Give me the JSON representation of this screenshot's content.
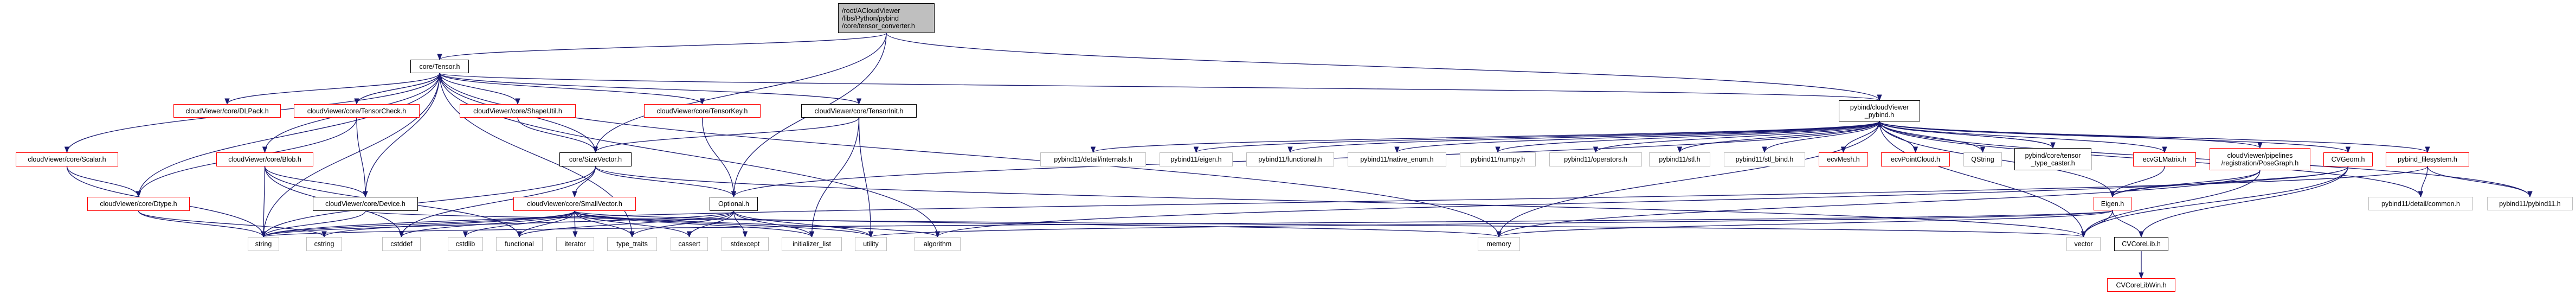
{
  "graph": {
    "edge_color": "#191970",
    "border_colors": {
      "red": "#ff0000",
      "black": "#000000",
      "gray": "#bfbfbf",
      "root_fill": "#bfbfbf"
    },
    "nodes": [
      {
        "id": "root",
        "label": "/root/ACloudViewer\n/libs/Python/pybind\n/core/tensor_converter.h",
        "style": "root"
      },
      {
        "id": "tensor",
        "label": "core/Tensor.h",
        "style": "black"
      },
      {
        "id": "pybind",
        "label": "pybind/cloudViewer\n_pybind.h",
        "style": "black"
      },
      {
        "id": "dlpack",
        "label": "cloudViewer/core/DLPack.h",
        "style": "red"
      },
      {
        "id": "tensorcheck",
        "label": "cloudViewer/core/TensorCheck.h",
        "style": "red"
      },
      {
        "id": "shapeutil",
        "label": "cloudViewer/core/ShapeUtil.h",
        "style": "red"
      },
      {
        "id": "tensorkey",
        "label": "cloudViewer/core/TensorKey.h",
        "style": "red"
      },
      {
        "id": "tensorinit",
        "label": "cloudViewer/core/TensorInit.h",
        "style": "black"
      },
      {
        "id": "scalar",
        "label": "cloudViewer/core/Scalar.h",
        "style": "red"
      },
      {
        "id": "blob",
        "label": "cloudViewer/core/Blob.h",
        "style": "red"
      },
      {
        "id": "sizevector",
        "label": "core/SizeVector.h",
        "style": "black"
      },
      {
        "id": "dtype",
        "label": "cloudViewer/core/Dtype.h",
        "style": "red"
      },
      {
        "id": "device",
        "label": "cloudViewer/core/Device.h",
        "style": "black"
      },
      {
        "id": "smallvector",
        "label": "cloudViewer/core/SmallVector.h",
        "style": "red"
      },
      {
        "id": "optional",
        "label": "Optional.h",
        "style": "black"
      },
      {
        "id": "string",
        "label": "string",
        "style": "gray"
      },
      {
        "id": "cstring",
        "label": "cstring",
        "style": "gray"
      },
      {
        "id": "cstddef",
        "label": "cstddef",
        "style": "gray"
      },
      {
        "id": "cstdlib",
        "label": "cstdlib",
        "style": "gray"
      },
      {
        "id": "functional",
        "label": "functional",
        "style": "gray"
      },
      {
        "id": "iterator",
        "label": "iterator",
        "style": "gray"
      },
      {
        "id": "type_traits",
        "label": "type_traits",
        "style": "gray"
      },
      {
        "id": "cassert",
        "label": "cassert",
        "style": "gray"
      },
      {
        "id": "stdexcept",
        "label": "stdexcept",
        "style": "gray"
      },
      {
        "id": "initializer_list",
        "label": "initializer_list",
        "style": "gray"
      },
      {
        "id": "utility",
        "label": "utility",
        "style": "gray"
      },
      {
        "id": "algorithm",
        "label": "algorithm",
        "style": "gray"
      },
      {
        "id": "memory",
        "label": "memory",
        "style": "gray"
      },
      {
        "id": "vector",
        "label": "vector",
        "style": "gray"
      },
      {
        "id": "internals",
        "label": "pybind11/detail/internals.h",
        "style": "gray"
      },
      {
        "id": "eigen_pb",
        "label": "pybind11/eigen.h",
        "style": "gray"
      },
      {
        "id": "functional_pb",
        "label": "pybind11/functional.h",
        "style": "gray"
      },
      {
        "id": "native_enum",
        "label": "pybind11/native_enum.h",
        "style": "gray"
      },
      {
        "id": "numpy",
        "label": "pybind11/numpy.h",
        "style": "gray"
      },
      {
        "id": "operators",
        "label": "pybind11/operators.h",
        "style": "gray"
      },
      {
        "id": "stl",
        "label": "pybind11/stl.h",
        "style": "gray"
      },
      {
        "id": "stl_bind",
        "label": "pybind11/stl_bind.h",
        "style": "gray"
      },
      {
        "id": "ecvmesh",
        "label": "ecvMesh.h",
        "style": "red"
      },
      {
        "id": "ecvpointcloud",
        "label": "ecvPointCloud.h",
        "style": "red"
      },
      {
        "id": "qstring",
        "label": "QString",
        "style": "gray"
      },
      {
        "id": "caster",
        "label": "pybind/core/tensor\n_type_caster.h",
        "style": "black"
      },
      {
        "id": "glmatrix",
        "label": "ecvGLMatrix.h",
        "style": "red"
      },
      {
        "id": "posegraph",
        "label": "cloudViewer/pipelines\n/registration/PoseGraph.h",
        "style": "red"
      },
      {
        "id": "cvgeom",
        "label": "CVGeom.h",
        "style": "red"
      },
      {
        "id": "pbfs",
        "label": "pybind_filesystem.h",
        "style": "red"
      },
      {
        "id": "eigen",
        "label": "Eigen.h",
        "style": "red"
      },
      {
        "id": "common",
        "label": "pybind11/detail/common.h",
        "style": "gray"
      },
      {
        "id": "pybind11",
        "label": "pybind11/pybind11.h",
        "style": "gray"
      },
      {
        "id": "cvcorelib",
        "label": "CVCoreLib.h",
        "style": "black"
      },
      {
        "id": "cvcorelibwin",
        "label": "CVCoreLibWin.h",
        "style": "red"
      }
    ],
    "edges": [
      [
        "root",
        "tensor"
      ],
      [
        "root",
        "sizevector"
      ],
      [
        "root",
        "optional"
      ],
      [
        "root",
        "pybind"
      ],
      [
        "tensor",
        "dlpack"
      ],
      [
        "tensor",
        "tensorcheck"
      ],
      [
        "tensor",
        "shapeutil"
      ],
      [
        "tensor",
        "tensorkey"
      ],
      [
        "tensor",
        "tensorinit"
      ],
      [
        "tensor",
        "sizevector"
      ],
      [
        "tensor",
        "scalar"
      ],
      [
        "tensor",
        "blob"
      ],
      [
        "tensor",
        "dtype"
      ],
      [
        "tensor",
        "device"
      ],
      [
        "tensor",
        "string"
      ],
      [
        "tensor",
        "type_traits"
      ],
      [
        "tensor",
        "memory"
      ],
      [
        "tensor",
        "algorithm"
      ],
      [
        "tensorcheck",
        "tensor"
      ],
      [
        "tensorcheck",
        "dtype"
      ],
      [
        "tensorcheck",
        "device"
      ],
      [
        "shapeutil",
        "sizevector"
      ],
      [
        "tensorkey",
        "optional"
      ],
      [
        "tensorinit",
        "sizevector"
      ],
      [
        "tensorinit",
        "initializer_list"
      ],
      [
        "tensorinit",
        "utility"
      ],
      [
        "scalar",
        "dtype"
      ],
      [
        "scalar",
        "string"
      ],
      [
        "blob",
        "device"
      ],
      [
        "blob",
        "string"
      ],
      [
        "blob",
        "cstddef"
      ],
      [
        "blob",
        "functional"
      ],
      [
        "dtype",
        "string"
      ],
      [
        "dtype",
        "cstring"
      ],
      [
        "device",
        "string"
      ],
      [
        "device",
        "vector"
      ],
      [
        "sizevector",
        "smallvector"
      ],
      [
        "sizevector",
        "optional"
      ],
      [
        "sizevector",
        "string"
      ],
      [
        "sizevector",
        "cstddef"
      ],
      [
        "sizevector",
        "vector"
      ],
      [
        "smallvector",
        "cstddef"
      ],
      [
        "smallvector",
        "cstdlib"
      ],
      [
        "smallvector",
        "functional"
      ],
      [
        "smallvector",
        "iterator"
      ],
      [
        "smallvector",
        "type_traits"
      ],
      [
        "smallvector",
        "cassert"
      ],
      [
        "smallvector",
        "initializer_list"
      ],
      [
        "smallvector",
        "utility"
      ],
      [
        "smallvector",
        "memory"
      ],
      [
        "smallvector",
        "algorithm"
      ],
      [
        "smallvector",
        "string"
      ],
      [
        "smallvector",
        "cstring"
      ],
      [
        "optional",
        "functional"
      ],
      [
        "optional",
        "type_traits"
      ],
      [
        "optional",
        "cassert"
      ],
      [
        "optional",
        "stdexcept"
      ],
      [
        "optional",
        "initializer_list"
      ],
      [
        "optional",
        "utility"
      ],
      [
        "optional",
        "string"
      ],
      [
        "pybind",
        "tensor"
      ],
      [
        "pybind",
        "internals"
      ],
      [
        "pybind",
        "eigen_pb"
      ],
      [
        "pybind",
        "functional_pb"
      ],
      [
        "pybind",
        "native_enum"
      ],
      [
        "pybind",
        "numpy"
      ],
      [
        "pybind",
        "operators"
      ],
      [
        "pybind",
        "stl"
      ],
      [
        "pybind",
        "stl_bind"
      ],
      [
        "pybind",
        "ecvmesh"
      ],
      [
        "pybind",
        "ecvpointcloud"
      ],
      [
        "pybind",
        "qstring"
      ],
      [
        "pybind",
        "caster"
      ],
      [
        "pybind",
        "glmatrix"
      ],
      [
        "pybind",
        "posegraph"
      ],
      [
        "pybind",
        "cvgeom"
      ],
      [
        "pybind",
        "pbfs"
      ],
      [
        "pybind",
        "common"
      ],
      [
        "pybind",
        "pybind11"
      ],
      [
        "pybind",
        "optional"
      ],
      [
        "pybind",
        "eigen"
      ],
      [
        "pybind",
        "memory"
      ],
      [
        "pybind",
        "vector"
      ],
      [
        "caster",
        "pybind"
      ],
      [
        "glmatrix",
        "eigen"
      ],
      [
        "posegraph",
        "eigen"
      ],
      [
        "posegraph",
        "vector"
      ],
      [
        "posegraph",
        "memory"
      ],
      [
        "cvgeom",
        "eigen"
      ],
      [
        "cvgeom",
        "vector"
      ],
      [
        "cvgeom",
        "cvcorelib"
      ],
      [
        "cvgeom",
        "algorithm"
      ],
      [
        "pbfs",
        "common"
      ],
      [
        "pbfs",
        "pybind11"
      ],
      [
        "pbfs",
        "string"
      ],
      [
        "eigen",
        "vector"
      ],
      [
        "eigen",
        "cvcorelib"
      ],
      [
        "eigen",
        "string"
      ],
      [
        "eigen",
        "memory"
      ],
      [
        "eigen",
        "utility"
      ],
      [
        "cvcorelib",
        "cvcorelibwin"
      ]
    ]
  }
}
